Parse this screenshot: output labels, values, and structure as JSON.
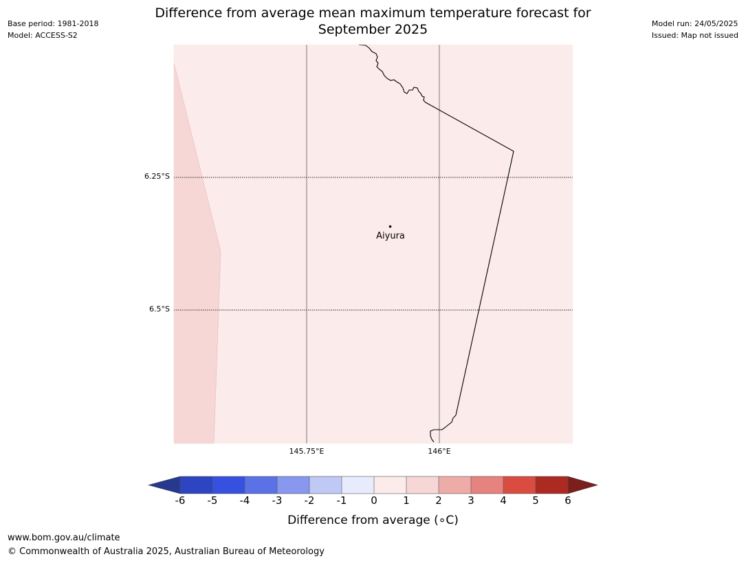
{
  "header": {
    "base_period": "Base period: 1981-2018",
    "model": "Model: ACCESS-S2",
    "title_line1": "Difference from average mean maximum temperature forecast for",
    "title_line2": "September 2025",
    "model_run": "Model run: 24/05/2025",
    "issued": "Issued: Map not issued"
  },
  "map": {
    "latitude_labels": [
      "6.25°S",
      "6.5°S"
    ],
    "longitude_labels": [
      "145.75°E",
      "146°E"
    ],
    "place": "Aiyura",
    "fill_colors": {
      "band_0_1": "#fbebea",
      "band_1_2": "#f6d7d6"
    }
  },
  "colorbar": {
    "ticks": [
      "-6",
      "-5",
      "-4",
      "-3",
      "-2",
      "-1",
      "0",
      "1",
      "2",
      "3",
      "4",
      "5",
      "6"
    ],
    "colors": [
      "#27398f",
      "#2d44c3",
      "#3651e0",
      "#5b72e6",
      "#8798ee",
      "#c0c8f6",
      "#e8ebfc",
      "#fbebea",
      "#f6d7d6",
      "#eeaca8",
      "#e6837e",
      "#da4c3f",
      "#ac2a22",
      "#7c1f1b"
    ],
    "label": "Difference from average (∘C)"
  },
  "footer": {
    "url": "www.bom.gov.au/climate",
    "copyright": "© Commonwealth of Australia 2025, Australian Bureau of Meteorology"
  }
}
